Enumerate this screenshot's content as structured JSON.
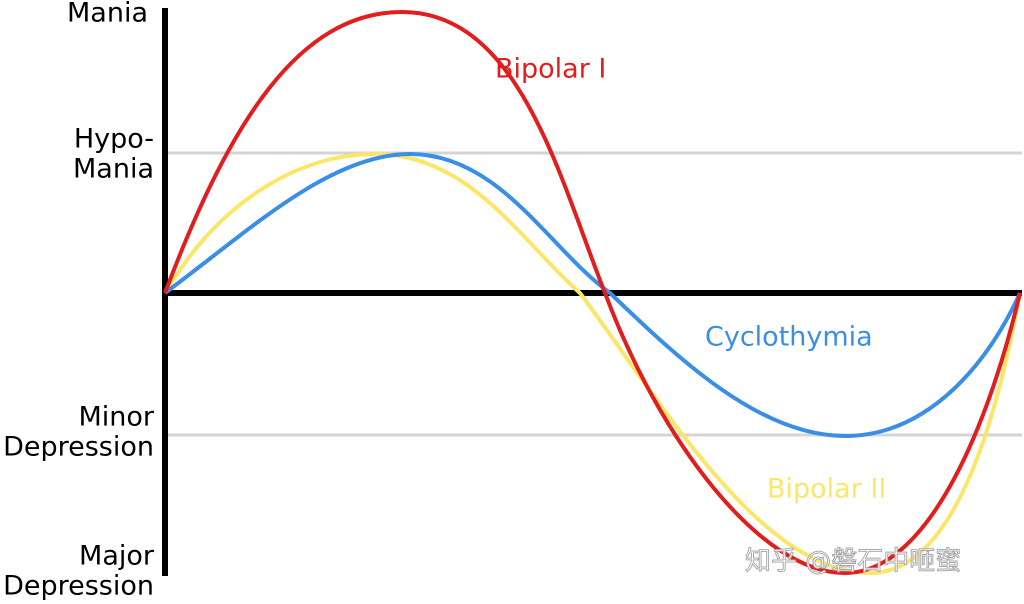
{
  "levels": [
    {
      "lines": [
        "Mania"
      ]
    },
    {
      "lines": [
        "Hypo-",
        "Mania"
      ]
    },
    {
      "lines": [
        "Minor",
        "Depression"
      ]
    },
    {
      "lines": [
        "Major",
        "Depression"
      ]
    }
  ],
  "curves": [
    {
      "label": "Bipolar I"
    },
    {
      "label": "Cyclothymia"
    },
    {
      "label": "Bipolar II"
    }
  ],
  "watermark": "知乎 @磐石中咂蜜"
}
